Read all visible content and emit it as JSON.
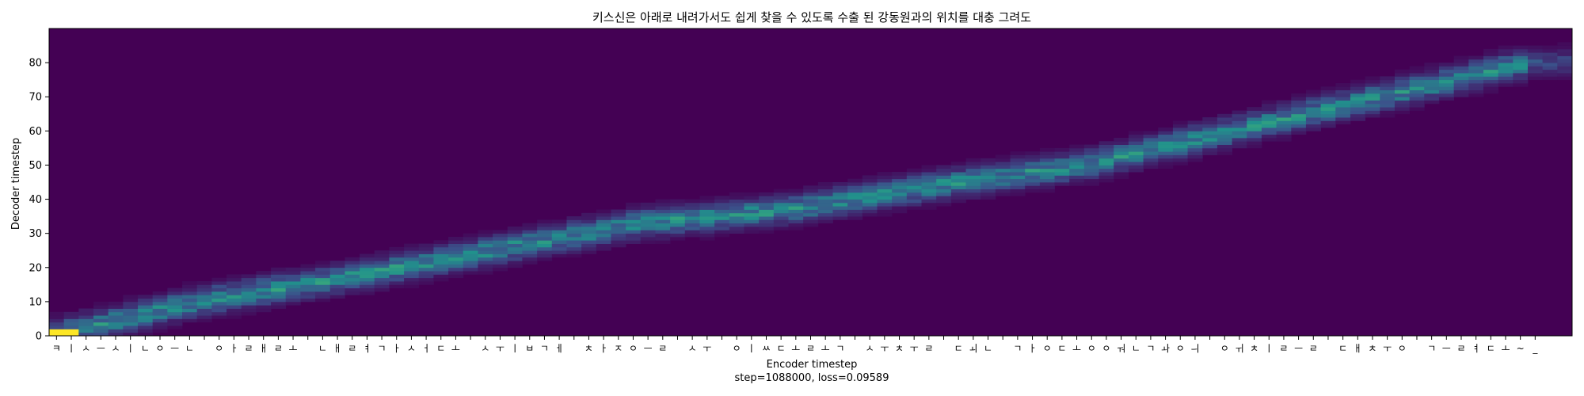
{
  "chart_data": {
    "type": "heatmap",
    "title": "키스신은 아래로 내려가서도 쉽게 찾을 수 있도록 수출 된 강동원과의 위치를 대충 그려도",
    "xlabel": "Encoder timestep",
    "ylabel": "Decoder timestep",
    "caption": "step=1088000, loss=0.09589",
    "x_tick_labels": [
      "ㅋ",
      "ㅣ",
      "ㅅ",
      "ㅡ",
      "ㅅ",
      "ㅣ",
      "ㄴ",
      "ㅇ",
      "ㅡ",
      "ㄴ",
      " ",
      "ㅇ",
      "ㅏ",
      "ㄹ",
      "ㅐ",
      "ㄹ",
      "ㅗ",
      " ",
      "ㄴ",
      "ㅐ",
      "ㄹ",
      "ㅕ",
      "ㄱ",
      "ㅏ",
      "ㅅ",
      "ㅓ",
      "ㄷ",
      "ㅗ",
      " ",
      "ㅅ",
      "ㅜ",
      "ㅣ",
      "ㅂ",
      "ㄱ",
      "ㅔ",
      " ",
      "ㅊ",
      "ㅏ",
      "ㅈ",
      "ㅇ",
      "ㅡ",
      "ㄹ",
      " ",
      "ㅅ",
      "ㅜ",
      " ",
      "ㅇ",
      "ㅣ",
      "ㅆ",
      "ㄷ",
      "ㅗ",
      "ㄹ",
      "ㅗ",
      "ㄱ",
      " ",
      "ㅅ",
      "ㅜ",
      "ㅊ",
      "ㅜ",
      "ㄹ",
      " ",
      "ㄷ",
      "ㅚ",
      "ㄴ",
      " ",
      "ㄱ",
      "ㅏ",
      "ㅇ",
      "ㄷ",
      "ㅗ",
      "ㅇ",
      "ㅇ",
      "ㅝ",
      "ㄴ",
      "ㄱ",
      "ㅘ",
      "ㅇ",
      "ㅢ",
      " ",
      "ㅇ",
      "ㅟ",
      "ㅊ",
      "ㅣ",
      "ㄹ",
      "ㅡ",
      "ㄹ",
      " ",
      "ㄷ",
      "ㅐ",
      "ㅊ",
      "ㅜ",
      "ㅇ",
      " ",
      "ㄱ",
      "ㅡ",
      "ㄹ",
      "ㅕ",
      "ㄷ",
      "ㅗ",
      "~",
      "_"
    ],
    "y_ticks": [
      0,
      10,
      20,
      30,
      40,
      50,
      60,
      70,
      80
    ],
    "xlim": [
      0,
      103
    ],
    "ylim": [
      0,
      90
    ],
    "colormap": "viridis",
    "alignment_path": [
      [
        0,
        0
      ],
      [
        10,
        10
      ],
      [
        20,
        17
      ],
      [
        30,
        25
      ],
      [
        40,
        33
      ],
      [
        50,
        37
      ],
      [
        60,
        44
      ],
      [
        70,
        50
      ],
      [
        80,
        60
      ],
      [
        90,
        70
      ],
      [
        100,
        80
      ]
    ],
    "colors": {
      "background": "#440154",
      "peak": "#fde725"
    }
  }
}
